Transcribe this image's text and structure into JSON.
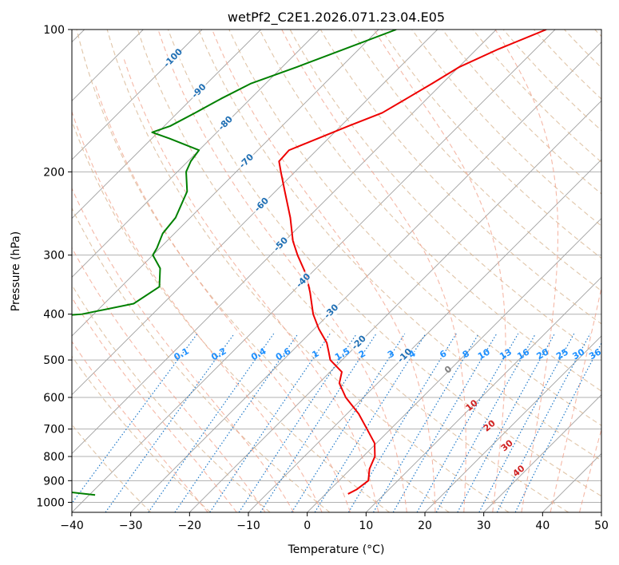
{
  "chart_data": {
    "type": "line",
    "title": "wetPf2_C2E1.2026.071.23.04.E05",
    "xlabel": "Temperature (°C)",
    "ylabel": "Pressure (hPa)",
    "xlim": [
      -40,
      50
    ],
    "ylim": [
      1050,
      100
    ],
    "x_ticks": [
      -40,
      -30,
      -20,
      -10,
      0,
      10,
      20,
      30,
      40,
      50
    ],
    "x_tick_labels": [
      "−40",
      "−30",
      "−20",
      "−10",
      "0",
      "10",
      "20",
      "30",
      "40",
      "50"
    ],
    "y_ticks": [
      100,
      200,
      300,
      400,
      500,
      600,
      700,
      800,
      900,
      1000
    ],
    "y_tick_labels": [
      "100",
      "200",
      "300",
      "400",
      "500",
      "600",
      "700",
      "800",
      "900",
      "1000"
    ],
    "skew": 45,
    "colors": {
      "temperature": "#ee0000",
      "dewpoint": "#008000",
      "isotherm": "#999999",
      "dry_adiabat": "#d8b792",
      "moist_adiabat": "#f2a08a",
      "mixing_ratio": "#1e78c8",
      "mixing_label": "#1e90ff",
      "moist_label": "#d02020",
      "zero_label": "#808080"
    },
    "isotherm_labels": {
      "values": [
        -100,
        -90,
        -80,
        -70,
        -60,
        -50,
        -40,
        -30,
        -20,
        -10
      ],
      "labels": [
        "-100",
        "-90",
        "-80",
        "-70",
        "-60",
        "-50",
        "-40",
        "-30",
        "-20",
        "-10"
      ],
      "color": "#1f6fb4"
    },
    "mixing_ratio_labels": [
      "0.1",
      "0.2",
      "0.4",
      "0.6",
      "1",
      "1.5",
      "2",
      "3",
      "4",
      "6",
      "8",
      "10",
      "13",
      "16",
      "20",
      "25",
      "30",
      "36"
    ],
    "moist_adiabat_labels": [
      "0",
      "10",
      "20",
      "30",
      "40"
    ],
    "series": [
      {
        "name": "temperature",
        "points": [
          [
            100,
            -41.5
          ],
          [
            110,
            -46.3
          ],
          [
            120,
            -49.9
          ],
          [
            130,
            -51.7
          ],
          [
            140,
            -53.5
          ],
          [
            150,
            -55.2
          ],
          [
            160,
            -58.7
          ],
          [
            170,
            -61.8
          ],
          [
            180,
            -64.7
          ],
          [
            190,
            -64.5
          ],
          [
            200,
            -62.4
          ],
          [
            220,
            -58.4
          ],
          [
            250,
            -53.0
          ],
          [
            280,
            -48.6
          ],
          [
            300,
            -45.4
          ],
          [
            330,
            -40.6
          ],
          [
            360,
            -36.9
          ],
          [
            400,
            -32.7
          ],
          [
            430,
            -29.2
          ],
          [
            460,
            -25.5
          ],
          [
            480,
            -23.7
          ],
          [
            500,
            -22.0
          ],
          [
            530,
            -18.0
          ],
          [
            560,
            -16.5
          ],
          [
            600,
            -13.0
          ],
          [
            650,
            -8.0
          ],
          [
            700,
            -4.0
          ],
          [
            750,
            -0.3
          ],
          [
            800,
            2.0
          ],
          [
            850,
            3.2
          ],
          [
            900,
            5.0
          ],
          [
            940,
            4.5
          ],
          [
            960,
            3.8
          ]
        ]
      },
      {
        "name": "dewpoint",
        "points": [
          [
            100,
            -67.0
          ],
          [
            110,
            -72.5
          ],
          [
            120,
            -77.5
          ],
          [
            130,
            -82.5
          ],
          [
            140,
            -85.0
          ],
          [
            150,
            -87.0
          ],
          [
            160,
            -89.0
          ],
          [
            165,
            -91.0
          ],
          [
            170,
            -87.0
          ],
          [
            180,
            -80.0
          ],
          [
            190,
            -79.5
          ],
          [
            200,
            -78.5
          ],
          [
            220,
            -75.0
          ],
          [
            250,
            -72.5
          ],
          [
            270,
            -72.0
          ],
          [
            290,
            -70.5
          ],
          [
            300,
            -70.0
          ],
          [
            320,
            -66.5
          ],
          [
            350,
            -63.5
          ],
          [
            380,
            -65.0
          ],
          [
            400,
            -72.0
          ],
          [
            410,
            -83.0
          ],
          [
            420,
            -98.0
          ],
          [
            430,
            -108.0
          ],
          [
            440,
            -85.0
          ],
          [
            460,
            -76.0
          ],
          [
            470,
            -75.0
          ],
          [
            490,
            -79.0
          ],
          [
            510,
            -88.0
          ],
          [
            530,
            -92.0
          ],
          [
            550,
            -82.0
          ],
          [
            580,
            -76.0
          ],
          [
            620,
            -71.0
          ],
          [
            650,
            -69.5
          ],
          [
            680,
            -73.5
          ],
          [
            700,
            -71.5
          ],
          [
            730,
            -70.0
          ],
          [
            760,
            -76.0
          ],
          [
            780,
            -72.0
          ],
          [
            800,
            -69.0
          ],
          [
            830,
            -67.0
          ],
          [
            860,
            -66.5
          ],
          [
            880,
            -68.0
          ],
          [
            900,
            -62.5
          ],
          [
            920,
            -56.0
          ],
          [
            940,
            -48.0
          ],
          [
            965,
            -39.0
          ]
        ]
      }
    ]
  }
}
